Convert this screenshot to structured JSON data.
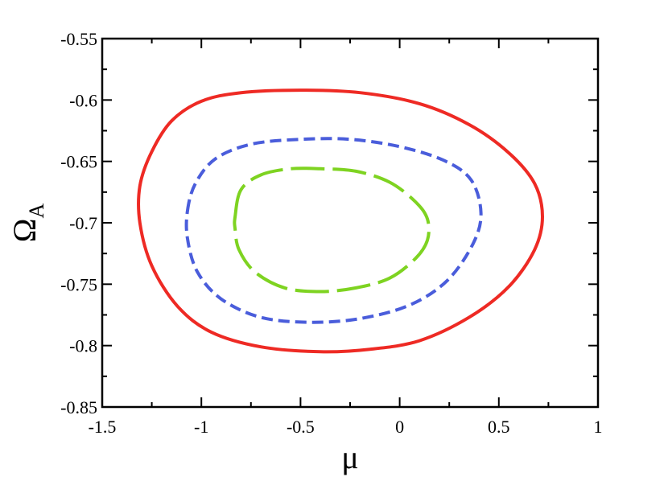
{
  "chart_data": {
    "type": "line",
    "title": "",
    "xlabel": "μ",
    "ylabel": {
      "symbol": "Ω",
      "subscript": "A"
    },
    "xlim": [
      -1.5,
      1
    ],
    "ylim": [
      -0.85,
      -0.55
    ],
    "xticks": [
      -1.5,
      -1,
      -0.5,
      0,
      0.5,
      1
    ],
    "xtick_labels": [
      "-1.5",
      "-1",
      "-0.5",
      "0",
      "0.5",
      "1"
    ],
    "yticks": [
      -0.55,
      -0.6,
      -0.65,
      -0.7,
      -0.75,
      -0.8,
      -0.85
    ],
    "ytick_labels": [
      "-0.55",
      "-0.6",
      "-0.65",
      "-0.7",
      "-0.75",
      "-0.8",
      "-0.85"
    ],
    "grid": false,
    "legend": "none",
    "series": [
      {
        "style": "solid",
        "color": "#ee2a24",
        "points": [
          [
            -1.31,
            -0.67
          ],
          [
            -1.25,
            -0.642
          ],
          [
            -1.15,
            -0.617
          ],
          [
            -1.0,
            -0.601
          ],
          [
            -0.8,
            -0.594
          ],
          [
            -0.5,
            -0.592
          ],
          [
            -0.2,
            -0.594
          ],
          [
            0.1,
            -0.603
          ],
          [
            0.35,
            -0.62
          ],
          [
            0.55,
            -0.643
          ],
          [
            0.68,
            -0.668
          ],
          [
            0.72,
            -0.695
          ],
          [
            0.68,
            -0.722
          ],
          [
            0.55,
            -0.752
          ],
          [
            0.35,
            -0.777
          ],
          [
            0.1,
            -0.796
          ],
          [
            -0.15,
            -0.803
          ],
          [
            -0.4,
            -0.805
          ],
          [
            -0.7,
            -0.801
          ],
          [
            -0.95,
            -0.789
          ],
          [
            -1.12,
            -0.768
          ],
          [
            -1.25,
            -0.735
          ],
          [
            -1.31,
            -0.7
          ]
        ]
      },
      {
        "style": "dashed",
        "color": "#4a5ddb",
        "points": [
          [
            -1.07,
            -0.69
          ],
          [
            -1.03,
            -0.668
          ],
          [
            -0.93,
            -0.648
          ],
          [
            -0.75,
            -0.636
          ],
          [
            -0.5,
            -0.632
          ],
          [
            -0.25,
            -0.632
          ],
          [
            0.0,
            -0.638
          ],
          [
            0.22,
            -0.649
          ],
          [
            0.36,
            -0.665
          ],
          [
            0.41,
            -0.692
          ],
          [
            0.37,
            -0.717
          ],
          [
            0.24,
            -0.747
          ],
          [
            0.05,
            -0.767
          ],
          [
            -0.2,
            -0.778
          ],
          [
            -0.45,
            -0.781
          ],
          [
            -0.7,
            -0.777
          ],
          [
            -0.9,
            -0.762
          ],
          [
            -1.02,
            -0.74
          ],
          [
            -1.07,
            -0.713
          ]
        ]
      },
      {
        "style": "long-dash",
        "color": "#7ed321",
        "points": [
          [
            -0.83,
            -0.695
          ],
          [
            -0.8,
            -0.673
          ],
          [
            -0.7,
            -0.661
          ],
          [
            -0.55,
            -0.656
          ],
          [
            -0.4,
            -0.656
          ],
          [
            -0.22,
            -0.658
          ],
          [
            -0.05,
            -0.667
          ],
          [
            0.08,
            -0.683
          ],
          [
            0.14,
            -0.697
          ],
          [
            0.14,
            -0.714
          ],
          [
            0.08,
            -0.729
          ],
          [
            -0.05,
            -0.745
          ],
          [
            -0.22,
            -0.753
          ],
          [
            -0.4,
            -0.756
          ],
          [
            -0.58,
            -0.753
          ],
          [
            -0.73,
            -0.74
          ],
          [
            -0.81,
            -0.722
          ],
          [
            -0.83,
            -0.705
          ]
        ]
      }
    ]
  }
}
